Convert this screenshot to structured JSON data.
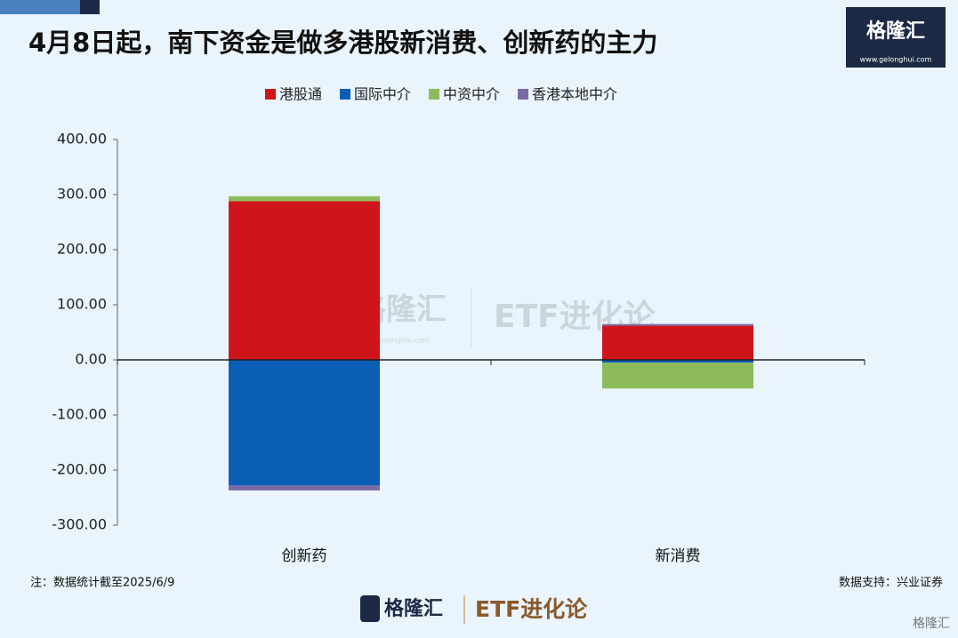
{
  "header": {
    "logo": "格隆汇",
    "url": "www.gelonghui.com"
  },
  "chart_data": {
    "type": "bar",
    "stacked": true,
    "title": "4月8日起，南下资金是做多港股新消费、创新药的主力",
    "categories": [
      "创新药",
      "新消费"
    ],
    "series": [
      {
        "name": "港股通",
        "color": "#d0141c",
        "values": [
          288,
          62
        ]
      },
      {
        "name": "国际中介",
        "color": "#0a5fb4",
        "values": [
          -228,
          -5
        ]
      },
      {
        "name": "中资中介",
        "color": "#8dbb5b",
        "values": [
          9,
          -47
        ]
      },
      {
        "name": "香港本地中介",
        "color": "#7a6aa8",
        "values": [
          -9,
          3
        ]
      }
    ],
    "ylim": [
      -300,
      400
    ],
    "yticks": [
      {
        "value": -300,
        "label": "-300.00"
      },
      {
        "value": -200,
        "label": "-200.00"
      },
      {
        "value": -100,
        "label": "-100.00"
      },
      {
        "value": 0,
        "label": "0.00"
      },
      {
        "value": 100,
        "label": "100.00"
      },
      {
        "value": 200,
        "label": "200.00"
      },
      {
        "value": 300,
        "label": "300.00"
      },
      {
        "value": 400,
        "label": "400.00"
      }
    ],
    "legend": "top",
    "note": "注：数据统计截至2025/6/9",
    "source": "数据支持：兴业证券"
  },
  "watermark": {
    "brand": "格隆汇",
    "url": "www.gelonghui.com",
    "text": "ETF进化论"
  },
  "footer": {
    "brand": "格隆汇",
    "text": "ETF进化论",
    "corner": "格隆汇"
  }
}
